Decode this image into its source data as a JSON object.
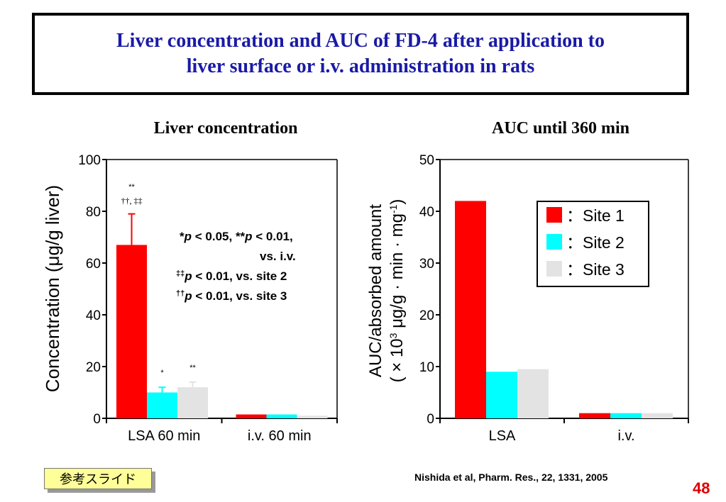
{
  "slide": {
    "title_line1": "Liver concentration and AUC of FD-4 after application to",
    "title_line2": "liver surface or i.v. administration in rats",
    "ref_button": "参考スライド",
    "citation": "Nishida et al, Pharm. Res., 22, 1331, 2005",
    "page_number": "48"
  },
  "colors": {
    "site1": "#ff0000",
    "site2": "#00ffff",
    "site3": "#e3e3e3",
    "title": "#1a1aa6",
    "page_number": "#e00000"
  },
  "chart_data": [
    {
      "type": "bar",
      "title": "Liver concentration",
      "ylabel": "Concentration (μg/g liver)",
      "ylim": [
        0,
        100
      ],
      "yticks": [
        "0",
        "20",
        "40",
        "60",
        "80",
        "100"
      ],
      "categories": [
        "LSA 60 min",
        "i.v. 60 min"
      ],
      "series": [
        {
          "name": "Site 1",
          "values": [
            67,
            1.5
          ],
          "errors": [
            12,
            0
          ]
        },
        {
          "name": "Site 2",
          "values": [
            10,
            1.5
          ],
          "errors": [
            2,
            0
          ]
        },
        {
          "name": "Site 3",
          "values": [
            12,
            1.0
          ],
          "errors": [
            2,
            0
          ]
        }
      ],
      "bar_annotations": [
        {
          "lines": [
            "**",
            "††, ‡‡"
          ]
        },
        {
          "lines": [
            "*"
          ]
        },
        {
          "lines": [
            "**"
          ]
        }
      ],
      "note_lines": [
        {
          "sym": "*",
          "pre": "",
          "text": " < 0.05, ",
          "sym2": "**",
          "text2": " < 0.01,"
        },
        {
          "text": "vs. i.v."
        },
        {
          "sym": "‡‡",
          "text": " < 0.01, vs. site 2"
        },
        {
          "sym": "††",
          "text": " < 0.01, vs. site 3"
        }
      ],
      "p_letter": "p"
    },
    {
      "type": "bar",
      "title": "AUC until 360 min",
      "ylabel_line1": "AUC/absorbed amount",
      "ylabel_line2_pre": "( × 10",
      "ylabel_line2_sup": "3",
      "ylabel_line2_mid": " μg/g · min · mg",
      "ylabel_line2_sup2": "-1",
      "ylabel_line2_post": ")",
      "ylim": [
        0,
        50
      ],
      "yticks": [
        "0",
        "10",
        "20",
        "30",
        "40",
        "50"
      ],
      "categories": [
        "LSA",
        "i.v."
      ],
      "series": [
        {
          "name": "Site 1",
          "values": [
            42,
            1.0
          ]
        },
        {
          "name": "Site 2",
          "values": [
            9,
            1.0
          ]
        },
        {
          "name": "Site 3",
          "values": [
            9.5,
            1.0
          ]
        }
      ],
      "legend": {
        "position": "top-right",
        "separator": "：",
        "items": [
          {
            "label": "Site 1",
            "color": "#ff0000"
          },
          {
            "label": "Site 2",
            "color": "#00ffff"
          },
          {
            "label": "Site 3",
            "color": "#e3e3e3"
          }
        ]
      }
    }
  ]
}
